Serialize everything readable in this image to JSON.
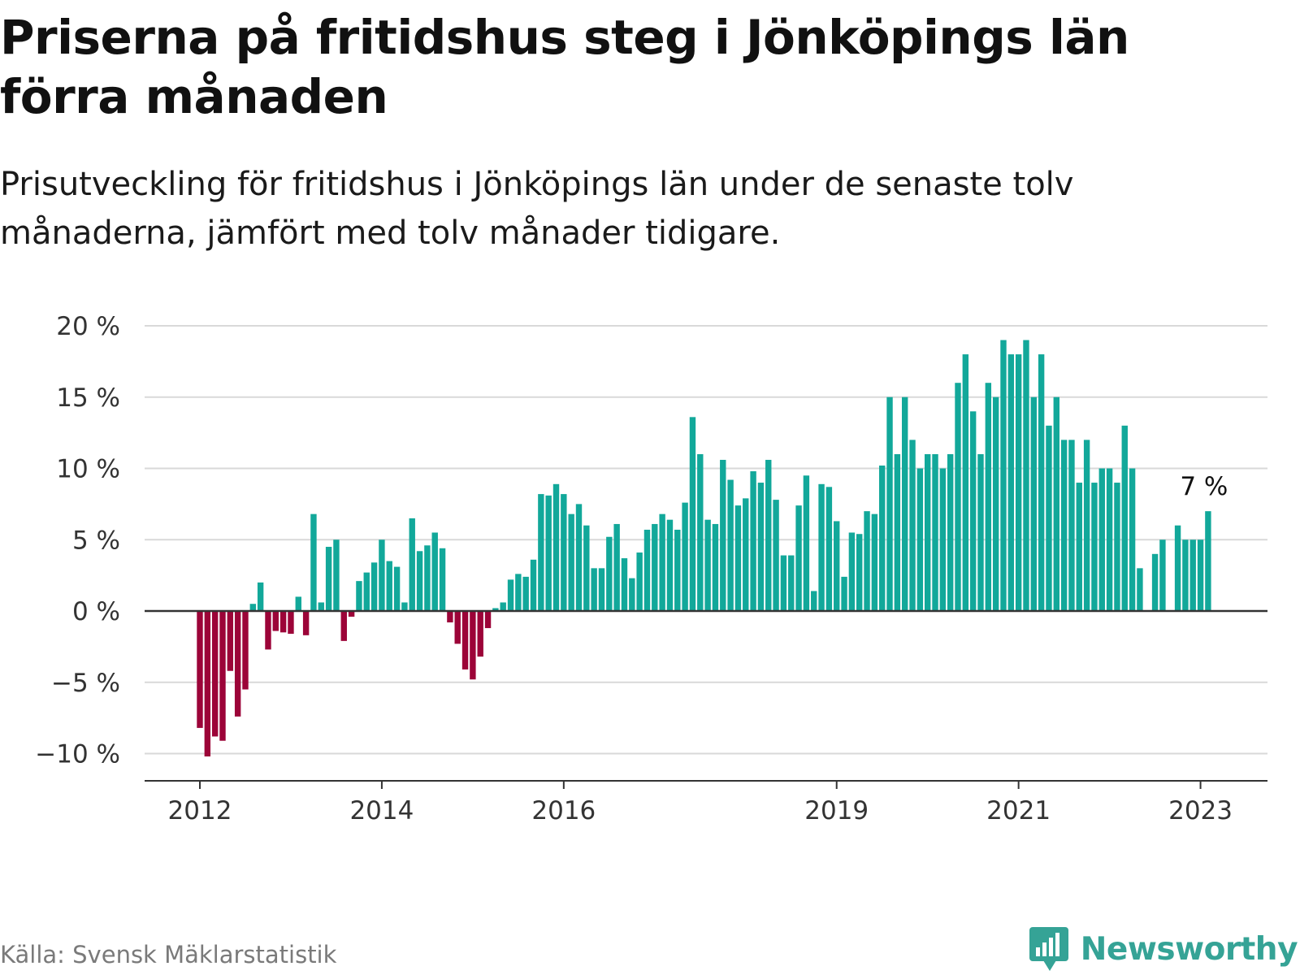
{
  "title": "Priserna på fritidshus steg i Jönköpings län förra månaden",
  "subtitle": "Prisutveckling för fritidshus i Jönköpings län under de senaste tolv månaderna, jämfört med tolv månader tidigare.",
  "source": "Källa: Svensk Mäklarstatistik",
  "brand": "Newsworthy",
  "icons": {
    "brand_logo": "bar-chart-speech-bubble-icon"
  },
  "colors": {
    "positive": "#12a89a",
    "negative": "#9c0438",
    "grid": "#d9d9d9",
    "zero_line": "#333333",
    "brand": "#35a396"
  },
  "chart_data": {
    "type": "bar",
    "title": "Priserna på fritidshus steg i Jönköpings län förra månaden",
    "xlabel": "",
    "ylabel": "",
    "ylim": [
      -12.2,
      20
    ],
    "grid": true,
    "start": "2012-01",
    "y_ticks": [
      -10,
      -5,
      0,
      5,
      10,
      15,
      20
    ],
    "y_tick_labels": [
      "−10 %",
      "−5 %",
      "0 %",
      "5 %",
      "10 %",
      "15 %",
      "20 %"
    ],
    "x_ticks": [
      {
        "label": "2012",
        "index": 0
      },
      {
        "label": "2014",
        "index": 24
      },
      {
        "label": "2016",
        "index": 48
      },
      {
        "label": "2019",
        "index": 84
      },
      {
        "label": "2021",
        "index": 108
      },
      {
        "label": "2023",
        "index": 132
      }
    ],
    "values": [
      -8.2,
      -10.2,
      -8.8,
      -9.1,
      -4.2,
      -7.4,
      -5.5,
      0.5,
      2.0,
      -2.7,
      -1.4,
      -1.5,
      -1.6,
      1.0,
      -1.7,
      6.8,
      0.6,
      4.5,
      5.0,
      -2.1,
      -0.4,
      2.1,
      2.7,
      3.4,
      5.0,
      3.5,
      3.1,
      0.6,
      6.5,
      4.2,
      4.6,
      5.5,
      4.4,
      -0.8,
      -2.3,
      -4.1,
      -4.8,
      -3.2,
      -1.2,
      0.2,
      0.6,
      2.2,
      2.6,
      2.4,
      3.6,
      8.2,
      8.1,
      8.9,
      8.2,
      6.8,
      7.5,
      6.0,
      3.0,
      3.0,
      5.2,
      6.1,
      3.7,
      2.3,
      4.1,
      5.7,
      6.1,
      6.8,
      6.4,
      5.7,
      7.6,
      13.6,
      11.0,
      6.4,
      6.1,
      10.6,
      9.2,
      7.4,
      7.9,
      9.8,
      9.0,
      10.6,
      7.8,
      3.9,
      3.9,
      7.4,
      9.5,
      1.4,
      8.9,
      8.7,
      6.3,
      2.4,
      5.5,
      5.4,
      7.0,
      6.8,
      10.2,
      15.0,
      11.0,
      15.0,
      12.0,
      10.0,
      11.0,
      11.0,
      10.0,
      11.0,
      16.0,
      18.0,
      14.0,
      11.0,
      16.0,
      15.0,
      19.0,
      18.0,
      18.0,
      19.0,
      15.0,
      18.0,
      13.0,
      15.0,
      12.0,
      12.0,
      9.0,
      12.0,
      9.0,
      10.0,
      10.0,
      9.0,
      13.0,
      10.0,
      3.0,
      null,
      4.0,
      5.0,
      null,
      6.0,
      5.0,
      5.0,
      5.0,
      7.0
    ],
    "annotations": [
      {
        "index": 133,
        "text": "7 %"
      }
    ]
  }
}
